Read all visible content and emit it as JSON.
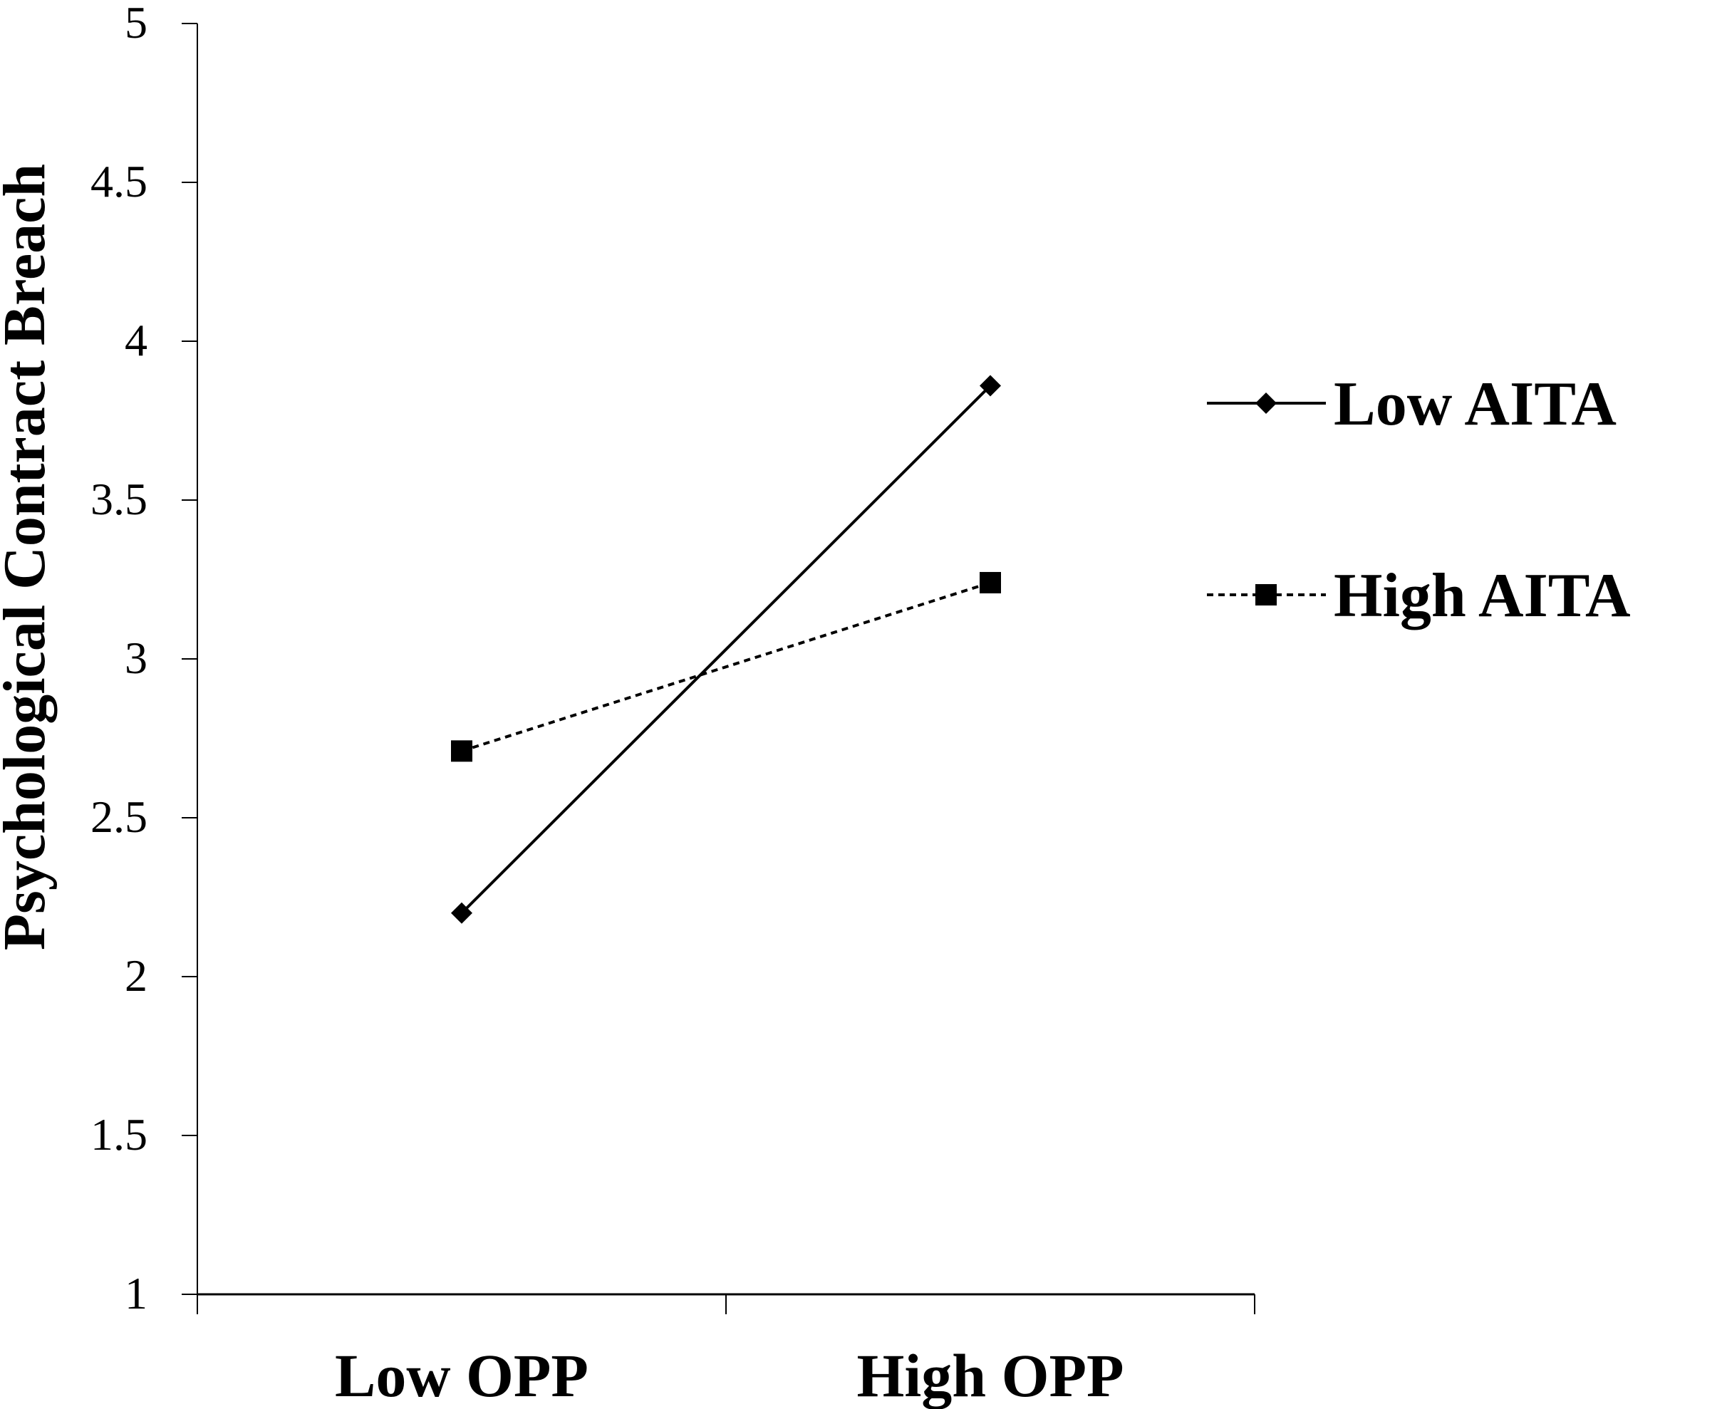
{
  "chart_data": {
    "type": "line",
    "title": "",
    "xlabel": "",
    "ylabel": "Psychological Contract Breach",
    "categories": [
      "Low OPP",
      "High OPP"
    ],
    "ylim": [
      1,
      5
    ],
    "yticks": [
      "1",
      "1.5",
      "2",
      "2.5",
      "3",
      "3.5",
      "4",
      "4.5",
      "5"
    ],
    "grid": false,
    "legend_position": "right",
    "series": [
      {
        "name": "Low AITA",
        "values": [
          2.2,
          3.86
        ],
        "line": "solid",
        "marker": "diamond",
        "color": "#000000"
      },
      {
        "name": "High AITA",
        "values": [
          2.71,
          3.24
        ],
        "line": "dashed",
        "marker": "square",
        "color": "#000000"
      }
    ]
  }
}
